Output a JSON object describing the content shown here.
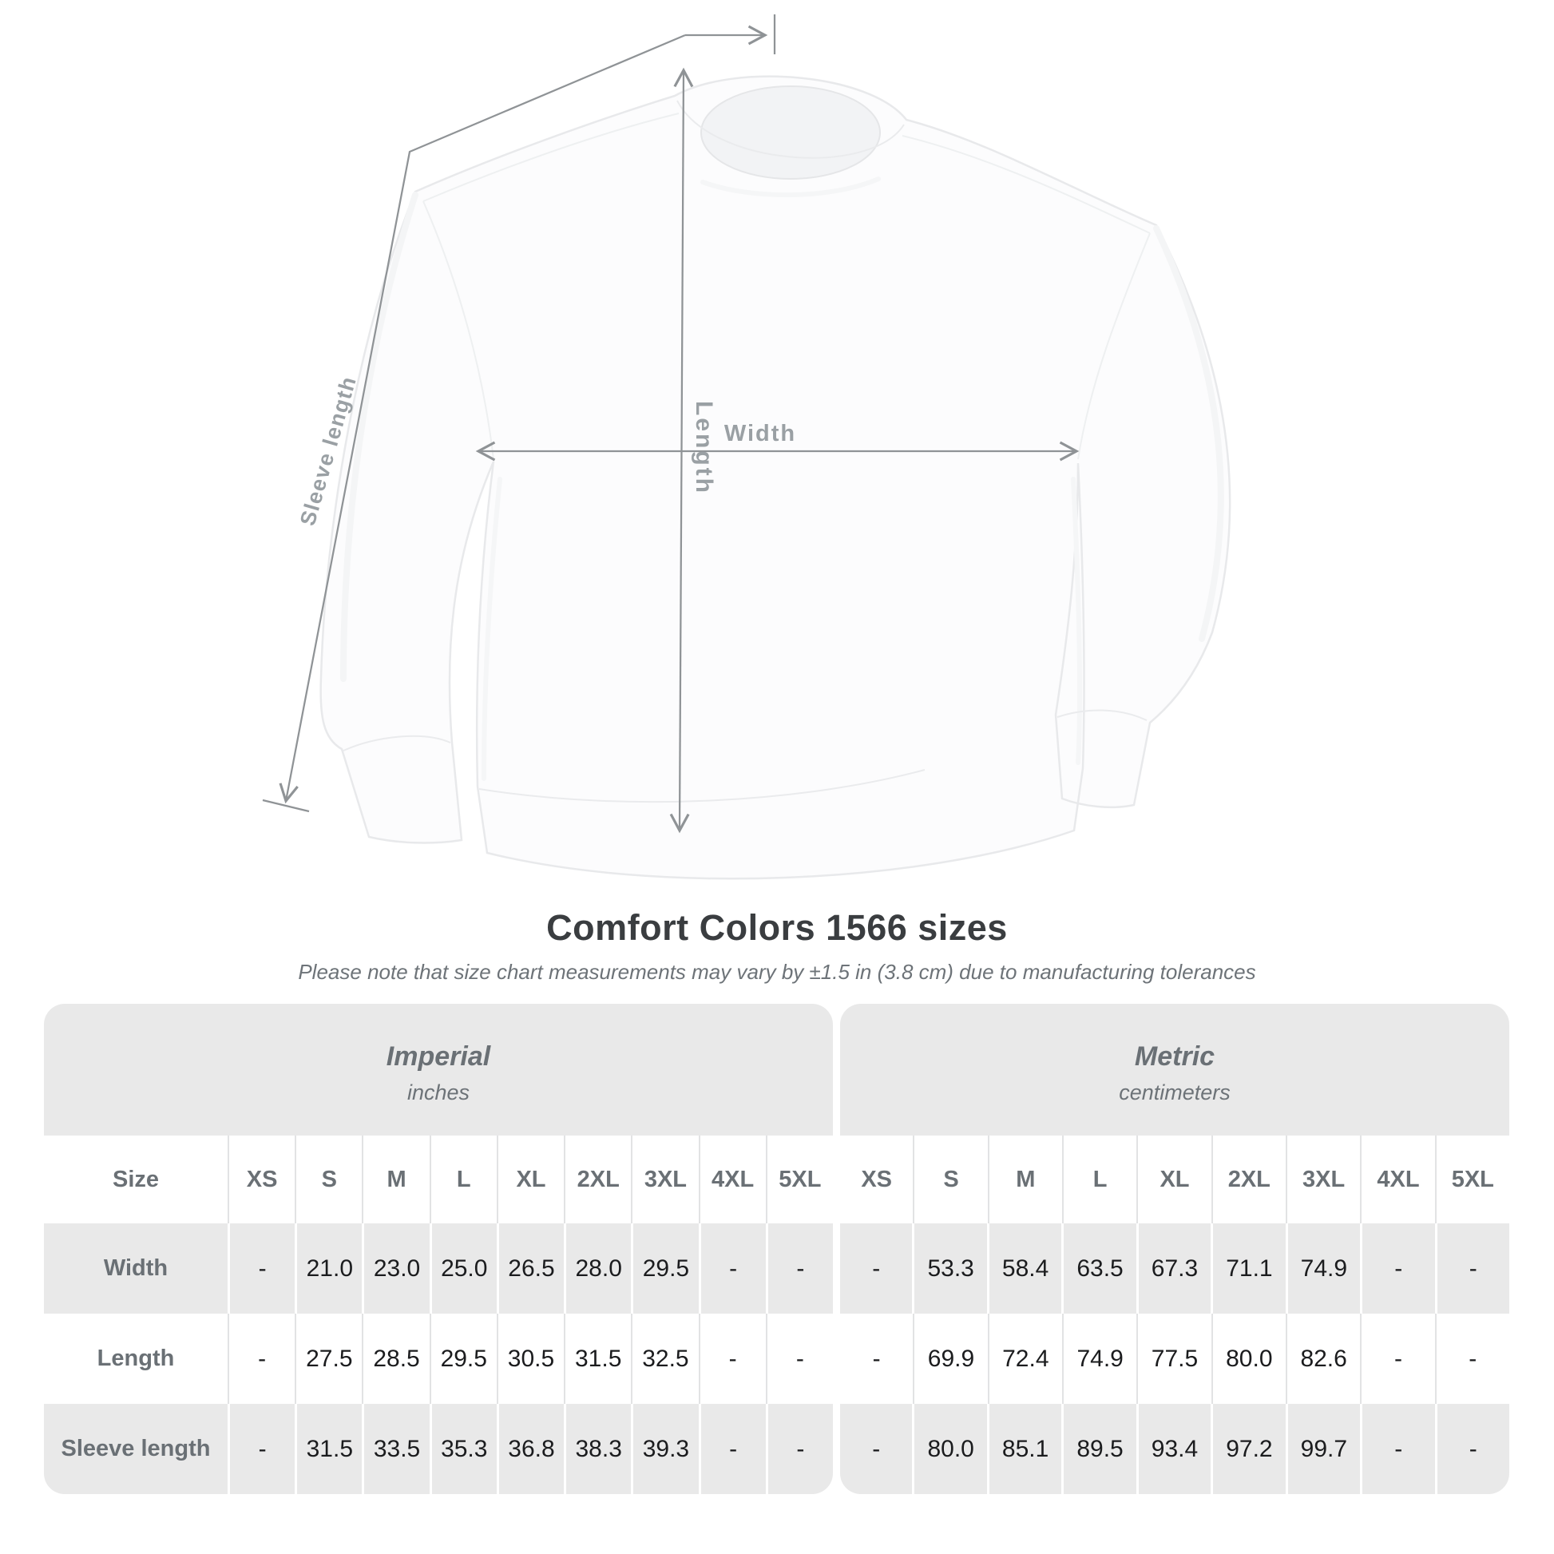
{
  "diagram": {
    "labels": {
      "length": "Length",
      "width": "Width",
      "sleeve": "Sleeve length"
    }
  },
  "heading": {
    "title": "Comfort Colors 1566 sizes",
    "note": "Please note that size chart measurements may vary by ±1.5 in (3.8 cm) due to manufacturing tolerances"
  },
  "size_table": {
    "size_header_label": "Size",
    "unit_groups": [
      {
        "name": "Imperial",
        "unit": "inches"
      },
      {
        "name": "Metric",
        "unit": "centimeters"
      }
    ],
    "sizes": [
      "XS",
      "S",
      "M",
      "L",
      "XL",
      "2XL",
      "3XL",
      "4XL",
      "5XL"
    ],
    "rows": [
      {
        "label": "Width",
        "imperial": [
          "-",
          "21.0",
          "23.0",
          "25.0",
          "26.5",
          "28.0",
          "29.5",
          "-",
          "-"
        ],
        "metric": [
          "-",
          "53.3",
          "58.4",
          "63.5",
          "67.3",
          "71.1",
          "74.9",
          "-",
          "-"
        ]
      },
      {
        "label": "Length",
        "imperial": [
          "-",
          "27.5",
          "28.5",
          "29.5",
          "30.5",
          "31.5",
          "32.5",
          "-",
          "-"
        ],
        "metric": [
          "-",
          "69.9",
          "72.4",
          "74.9",
          "77.5",
          "80.0",
          "82.6",
          "-",
          "-"
        ]
      },
      {
        "label": "Sleeve length",
        "imperial": [
          "-",
          "31.5",
          "33.5",
          "35.3",
          "36.8",
          "38.3",
          "39.3",
          "-",
          "-"
        ],
        "metric": [
          "-",
          "80.0",
          "85.1",
          "89.5",
          "93.4",
          "97.2",
          "99.7",
          "-",
          "-"
        ]
      }
    ]
  },
  "colors": {
    "band_gray": "#e9e9e9",
    "header_text": "#6a7075",
    "value_text": "#1b1c1e",
    "title_text": "#3a3d40",
    "note_text": "#6d7378",
    "line_gray": "#8f9396",
    "dim_label": "#9aa0a4",
    "separator_light": "#e2e3e4"
  }
}
